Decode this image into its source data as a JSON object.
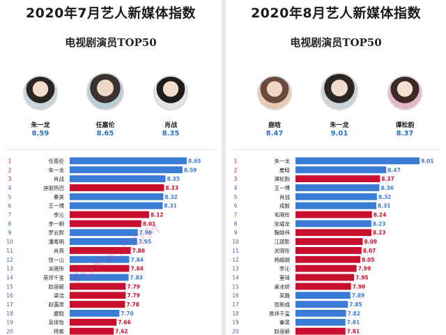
{
  "left": {
    "title": "2020年7月艺人新媒体指数",
    "subtitle": "电视剧演员TOP50",
    "top3": [
      {
        "name": "朱一龙",
        "value": "8.59"
      },
      {
        "name": "任嘉伦",
        "value": "8.65"
      },
      {
        "name": "肖战",
        "value": "8.35"
      }
    ]
  },
  "right": {
    "title": "2020年8月艺人新媒体指数",
    "subtitle": "电视剧演员TOP50",
    "top3": [
      {
        "name": "鹿晗",
        "value": "8.47"
      },
      {
        "name": "朱一龙",
        "value": "9.01"
      },
      {
        "name": "谭松韵",
        "value": "8.37"
      }
    ]
  },
  "watermark": "YOKA.COM",
  "colors": {
    "blue": "#3a7bd5",
    "red": "#c8102e",
    "rank_red": "#c8102e",
    "rank_blue": "#3a5fb0"
  },
  "chart_data": [
    {
      "type": "bar",
      "title": "2020年7月艺人新媒体指数",
      "subtitle": "电视剧演员TOP50",
      "ranks": [
        1,
        2,
        3,
        4,
        5,
        6,
        7,
        8,
        9,
        10,
        11,
        12,
        13,
        14,
        15,
        16,
        17,
        18,
        19,
        20
      ],
      "categories": [
        "任嘉伦",
        "朱一龙",
        "肖战",
        "迪丽热巴",
        "秦昊",
        "王一博",
        "李沁",
        "李一桐",
        "罗云熙",
        "潘粤明",
        "肖燕",
        "张一山",
        "关晓彤",
        "易烊千玺",
        "赵丽颖",
        "梁洁",
        "赵露思",
        "鹿晗",
        "吴佳怡",
        "杨紫"
      ],
      "values": [
        8.65,
        8.59,
        8.35,
        8.33,
        8.32,
        8.31,
        8.12,
        8.01,
        7.96,
        7.95,
        7.86,
        7.84,
        7.84,
        7.83,
        7.79,
        7.79,
        7.78,
        7.7,
        7.66,
        7.62
      ],
      "value_labels": [
        "8.65",
        "8.59",
        "8.35",
        "8.33",
        "8.32",
        "8.31",
        "8.12",
        "8.01",
        "7.96",
        "7.95",
        "7.86",
        "7.84",
        "7.84",
        "7.83",
        "7.79",
        "7.79",
        "7.78",
        "7.70",
        "7.66",
        "7.62"
      ],
      "bar_colors": [
        "blue",
        "blue",
        "blue",
        "red",
        "blue",
        "blue",
        "red",
        "red",
        "blue",
        "blue",
        "red",
        "blue",
        "red",
        "blue",
        "red",
        "red",
        "red",
        "blue",
        "red",
        "red"
      ]
    },
    {
      "type": "bar",
      "title": "2020年8月艺人新媒体指数",
      "subtitle": "电视剧演员TOP50",
      "ranks": [
        1,
        2,
        3,
        4,
        5,
        6,
        7,
        8,
        9,
        10,
        11,
        12,
        13,
        14,
        15,
        16,
        17,
        18,
        19,
        20
      ],
      "categories": [
        "朱一龙",
        "鹿晗",
        "谭松韵",
        "王一博",
        "肖战",
        "成毅",
        "毛晓彤",
        "宋威龙",
        "鞠婧祎",
        "江疏影",
        "关晓彤",
        "杨超越",
        "李沁",
        "童瑶",
        "袁冰妍",
        "吴磊",
        "张新成",
        "易烊千玺",
        "秦昊",
        "赵丽颖"
      ],
      "values": [
        9.01,
        8.47,
        8.37,
        8.36,
        8.32,
        8.31,
        8.24,
        8.23,
        8.23,
        8.09,
        8.07,
        8.05,
        7.99,
        7.95,
        7.9,
        7.89,
        7.85,
        7.82,
        7.81,
        7.81
      ],
      "value_labels": [
        "9.01",
        "8.47",
        "8.37",
        "8.36",
        "8.32",
        "8.31",
        "8.24",
        "8.23",
        "8.23",
        "8.09",
        "8.07",
        "8.05",
        "7.99",
        "7.95",
        "7.90",
        "7.89",
        "7.85",
        "7.82",
        "7.81",
        "7.81"
      ],
      "bar_colors": [
        "blue",
        "blue",
        "red",
        "blue",
        "blue",
        "blue",
        "red",
        "blue",
        "red",
        "red",
        "red",
        "red",
        "red",
        "red",
        "red",
        "blue",
        "blue",
        "blue",
        "blue",
        "red"
      ]
    }
  ]
}
